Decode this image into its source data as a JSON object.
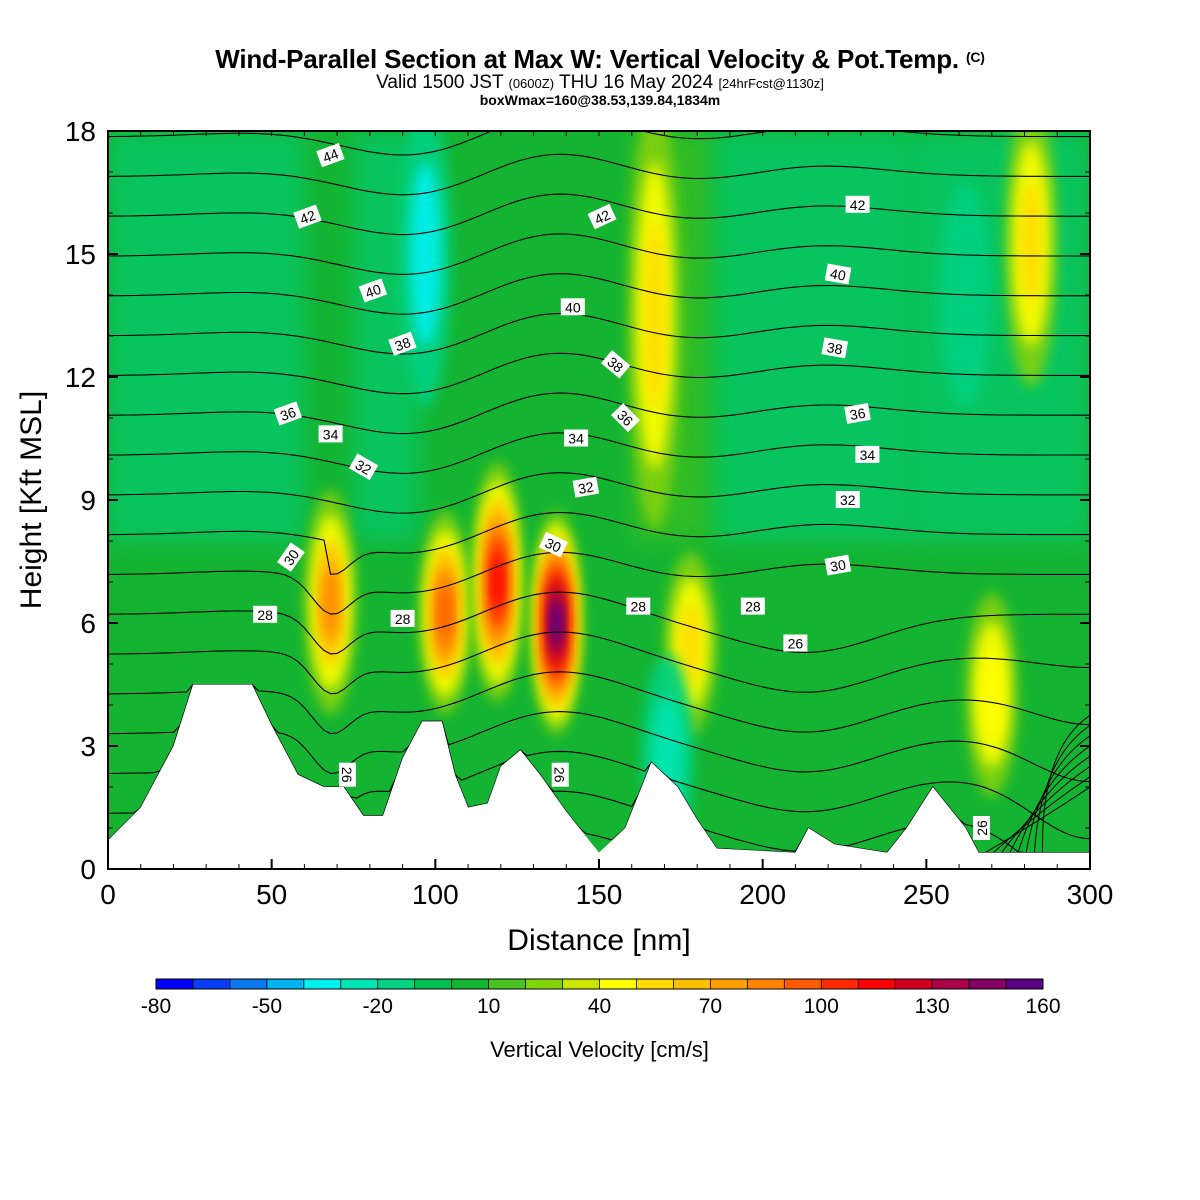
{
  "header": {
    "title_main": "Wind-Parallel Section at Max W: Vertical Velocity & Pot.Temp.",
    "title_copyright": "(C)",
    "subtitle_valid": "Valid 1500 JST",
    "subtitle_utc": "(0600Z)",
    "subtitle_date": "THU 16 May 2024",
    "subtitle_fcst": "[24hrFcst@1130z]",
    "subtitle2": "boxWmax=160@38.53,139.84,1834m"
  },
  "chart_data": {
    "type": "heatmap",
    "xlabel": "Distance [nm]",
    "ylabel": "Height [Kft MSL]",
    "xlim": [
      0,
      300
    ],
    "ylim": [
      0,
      18
    ],
    "x_ticks": [
      "0",
      "50",
      "100",
      "150",
      "200",
      "250",
      "300"
    ],
    "y_ticks": [
      "0",
      "3",
      "6",
      "9",
      "12",
      "15",
      "18"
    ],
    "colorbar": {
      "title": "Vertical Velocity [cm/s]",
      "range": [
        -80,
        160
      ],
      "step": 10,
      "tick_labels": [
        "-80",
        "-50",
        "-20",
        "10",
        "40",
        "70",
        "100",
        "130",
        "160"
      ],
      "colors": [
        "#0000ff",
        "#0a3cf5",
        "#0a78f0",
        "#00b4f0",
        "#00f0f0",
        "#00e6b4",
        "#00d282",
        "#00be50",
        "#14b432",
        "#46c31e",
        "#82d20a",
        "#c8e600",
        "#ffff00",
        "#ffdc00",
        "#ffbe00",
        "#ffa000",
        "#ff8200",
        "#ff5a00",
        "#ff2800",
        "#ff0000",
        "#d2001e",
        "#aa0046",
        "#820064",
        "#5a0082"
      ]
    },
    "updraft_columns": [
      {
        "x": 68,
        "w": 80,
        "z_bottom": 4.5,
        "z_top": 8.5
      },
      {
        "x": 103,
        "w": 95,
        "z_bottom": 4.5,
        "z_top": 8.0
      },
      {
        "x": 119,
        "w": 110,
        "z_bottom": 4.8,
        "z_top": 9.2
      },
      {
        "x": 137,
        "w": 160,
        "z_bottom": 4.0,
        "z_top": 8.0
      },
      {
        "x": 167,
        "w": 55,
        "z_bottom": 9.0,
        "z_top": 18.0
      },
      {
        "x": 178,
        "w": 50,
        "z_bottom": 4.0,
        "z_top": 7.0
      },
      {
        "x": 270,
        "w": 45,
        "z_bottom": 2.5,
        "z_top": 6.0
      },
      {
        "x": 282,
        "w": 55,
        "z_bottom": 12.5,
        "z_top": 18.0
      }
    ],
    "downdraft_columns": [
      {
        "x": 97,
        "w": -40,
        "z_bottom": 12.0,
        "z_top": 18.0
      },
      {
        "x": 171,
        "w": -30,
        "z_bottom": 1.0,
        "z_top": 4.5
      },
      {
        "x": 262,
        "w": -20,
        "z_bottom": 12.0,
        "z_top": 16.0
      }
    ],
    "terrain_height_kft": [
      {
        "x": 0,
        "z": 0.7
      },
      {
        "x": 10,
        "z": 1.5
      },
      {
        "x": 20,
        "z": 3.0
      },
      {
        "x": 26,
        "z": 4.5
      },
      {
        "x": 44,
        "z": 4.5
      },
      {
        "x": 50,
        "z": 3.5
      },
      {
        "x": 58,
        "z": 2.3
      },
      {
        "x": 66,
        "z": 2.0
      },
      {
        "x": 72,
        "z": 2.0
      },
      {
        "x": 78,
        "z": 1.3
      },
      {
        "x": 84,
        "z": 1.3
      },
      {
        "x": 90,
        "z": 2.7
      },
      {
        "x": 96,
        "z": 3.6
      },
      {
        "x": 102,
        "z": 3.6
      },
      {
        "x": 106,
        "z": 2.3
      },
      {
        "x": 110,
        "z": 1.5
      },
      {
        "x": 116,
        "z": 1.6
      },
      {
        "x": 120,
        "z": 2.5
      },
      {
        "x": 126,
        "z": 2.9
      },
      {
        "x": 132,
        "z": 2.3
      },
      {
        "x": 140,
        "z": 1.4
      },
      {
        "x": 146,
        "z": 0.8
      },
      {
        "x": 150,
        "z": 0.4
      },
      {
        "x": 158,
        "z": 1.0
      },
      {
        "x": 166,
        "z": 2.6
      },
      {
        "x": 174,
        "z": 2.0
      },
      {
        "x": 180,
        "z": 1.2
      },
      {
        "x": 186,
        "z": 0.5
      },
      {
        "x": 210,
        "z": 0.4
      },
      {
        "x": 214,
        "z": 1.0
      },
      {
        "x": 222,
        "z": 0.6
      },
      {
        "x": 238,
        "z": 0.4
      },
      {
        "x": 244,
        "z": 1.0
      },
      {
        "x": 252,
        "z": 2.0
      },
      {
        "x": 262,
        "z": 1.0
      },
      {
        "x": 266,
        "z": 0.4
      },
      {
        "x": 300,
        "z": 0.4
      }
    ],
    "theta_contours_C": [
      26,
      27,
      28,
      29,
      30,
      31,
      32,
      33,
      34,
      35,
      36,
      37,
      38,
      39,
      40,
      41,
      42,
      43,
      44
    ],
    "theta_labels": [
      {
        "text": "44",
        "x": 68,
        "z": 17.4,
        "rot": -20
      },
      {
        "text": "42",
        "x": 61,
        "z": 15.9,
        "rot": -20
      },
      {
        "text": "40",
        "x": 81,
        "z": 14.1,
        "rot": -20
      },
      {
        "text": "38",
        "x": 90,
        "z": 12.8,
        "rot": -20
      },
      {
        "text": "36",
        "x": 55,
        "z": 11.1,
        "rot": -20
      },
      {
        "text": "34",
        "x": 68,
        "z": 10.6,
        "rot": 0
      },
      {
        "text": "32",
        "x": 78,
        "z": 9.8,
        "rot": 30
      },
      {
        "text": "30",
        "x": 56,
        "z": 7.6,
        "rot": -55
      },
      {
        "text": "28",
        "x": 48,
        "z": 6.2,
        "rot": 0
      },
      {
        "text": "28",
        "x": 90,
        "z": 6.1,
        "rot": 0
      },
      {
        "text": "26",
        "x": 73,
        "z": 2.3,
        "rot": 90
      },
      {
        "text": "42",
        "x": 151,
        "z": 15.9,
        "rot": -25
      },
      {
        "text": "40",
        "x": 142,
        "z": 13.7,
        "rot": 0
      },
      {
        "text": "38",
        "x": 155,
        "z": 12.3,
        "rot": 40
      },
      {
        "text": "36",
        "x": 158,
        "z": 11.0,
        "rot": 45
      },
      {
        "text": "34",
        "x": 143,
        "z": 10.5,
        "rot": 0
      },
      {
        "text": "32",
        "x": 146,
        "z": 9.3,
        "rot": -10
      },
      {
        "text": "30",
        "x": 136,
        "z": 7.9,
        "rot": 25
      },
      {
        "text": "28",
        "x": 162,
        "z": 6.4,
        "rot": 0
      },
      {
        "text": "26",
        "x": 138,
        "z": 2.3,
        "rot": 90
      },
      {
        "text": "28",
        "x": 197,
        "z": 6.4,
        "rot": 0
      },
      {
        "text": "26",
        "x": 210,
        "z": 5.5,
        "rot": 0
      },
      {
        "text": "30",
        "x": 223,
        "z": 7.4,
        "rot": -10
      },
      {
        "text": "32",
        "x": 226,
        "z": 9.0,
        "rot": 0
      },
      {
        "text": "34",
        "x": 232,
        "z": 10.1,
        "rot": 0
      },
      {
        "text": "36",
        "x": 229,
        "z": 11.1,
        "rot": -10
      },
      {
        "text": "38",
        "x": 222,
        "z": 12.7,
        "rot": 10
      },
      {
        "text": "40",
        "x": 223,
        "z": 14.5,
        "rot": 10
      },
      {
        "text": "42",
        "x": 229,
        "z": 16.2,
        "rot": 0
      },
      {
        "text": "26",
        "x": 267,
        "z": 1.0,
        "rot": -90
      }
    ]
  }
}
